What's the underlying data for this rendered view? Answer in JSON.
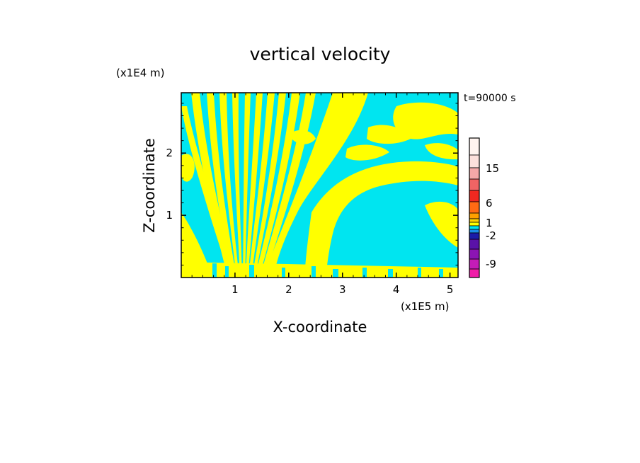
{
  "chart_data": {
    "type": "heatmap",
    "title": "vertical velocity",
    "xlabel": "X-coordinate",
    "ylabel": "Z-coordinate",
    "x_scale_label": "(x1E5 m)",
    "y_scale_label": "(x1E4 m)",
    "time_label": "t=90000 s",
    "xlim": [
      0,
      5.15
    ],
    "ylim": [
      0,
      2.97
    ],
    "x_ticks": [
      1,
      2,
      3,
      4,
      5
    ],
    "x_tick_labels": [
      "1",
      "2",
      "3",
      "4",
      "5"
    ],
    "y_ticks": [
      1,
      2
    ],
    "y_tick_labels": [
      "1",
      "2"
    ],
    "colorbar": {
      "levels": [
        -12,
        -9,
        -6,
        -3,
        -2,
        -1,
        0,
        1,
        2,
        3,
        6,
        9,
        12,
        15,
        18
      ],
      "colors": [
        "#f01ca8",
        "#c41cb8",
        "#8c14b4",
        "#5a12a8",
        "#1c1ca8",
        "#1c8ce8",
        "#00e5f0",
        "#ffff00",
        "#ffd200",
        "#ffa000",
        "#ff6a14",
        "#f02820",
        "#f06464",
        "#f4a8a8",
        "#fce0dc",
        "#fff4f0"
      ],
      "tick_labels": [
        "15",
        "6",
        "1",
        "-2",
        "-9"
      ]
    },
    "field_summary": "Dominant values near -1 to 0 (cyan) and 0 to 1 (yellow); alternating bands fan out from a source near x=1.0E5 m at the ground, with a large cyan region around x=3.3-4.6E5 m below z=1.8E4 m."
  },
  "colors": {
    "positive": "#ffff00",
    "negative": "#00e5f0",
    "frame": "#000000"
  }
}
